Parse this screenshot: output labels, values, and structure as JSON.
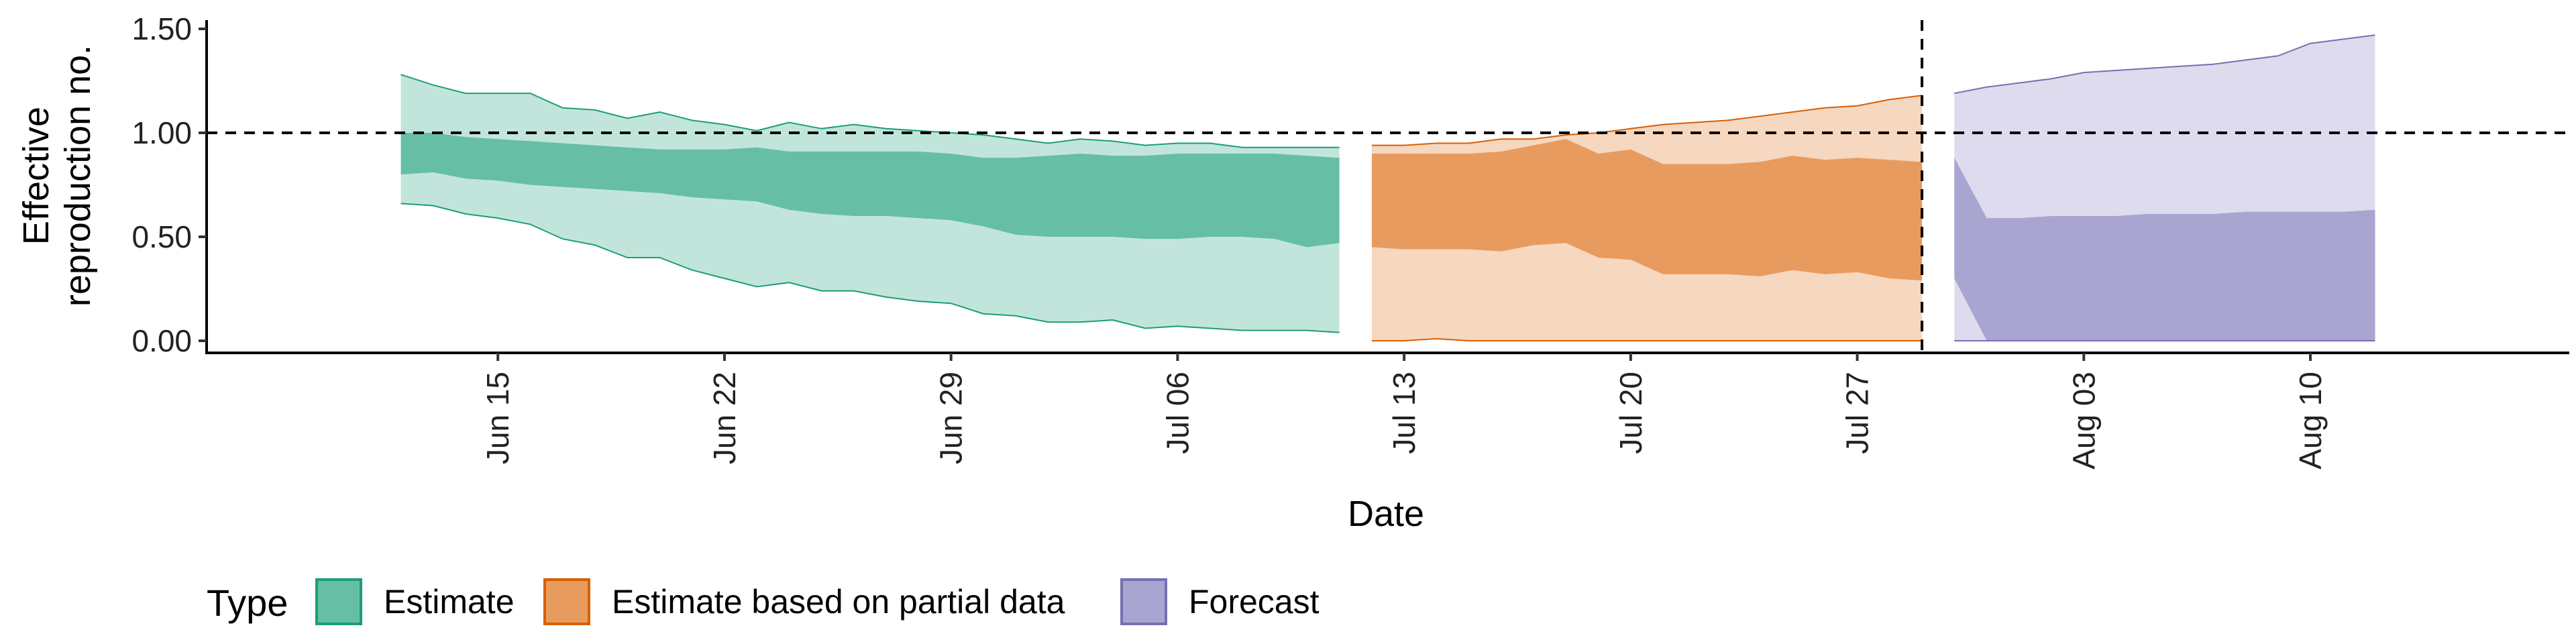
{
  "chart_data": {
    "type": "area",
    "xlabel": "Date",
    "ylabel": "Effective reproduction no.",
    "ylabel_lines": [
      "Effective",
      "reproduction no."
    ],
    "ylim": [
      0,
      1.55
    ],
    "y_ticks": [
      {
        "value": 0,
        "label": "0.00"
      },
      {
        "value": 0.5,
        "label": "0.50"
      },
      {
        "value": 1.0,
        "label": "1.00"
      },
      {
        "value": 1.5,
        "label": "1.50"
      }
    ],
    "xlim": [
      "2021-06-06",
      "2021-08-18"
    ],
    "x_ticks": [
      {
        "date": "2021-06-15",
        "label": "Jun 15"
      },
      {
        "date": "2021-06-22",
        "label": "Jun 22"
      },
      {
        "date": "2021-06-29",
        "label": "Jun 29"
      },
      {
        "date": "2021-07-06",
        "label": "Jul 06"
      },
      {
        "date": "2021-07-13",
        "label": "Jul 13"
      },
      {
        "date": "2021-07-20",
        "label": "Jul 20"
      },
      {
        "date": "2021-07-27",
        "label": "Jul 27"
      },
      {
        "date": "2021-08-03",
        "label": "Aug 03"
      },
      {
        "date": "2021-08-10",
        "label": "Aug 10"
      }
    ],
    "reference_line_y": 1.0,
    "reference_line_x": "2021-07-29",
    "legend": {
      "title": "Type",
      "position": "bottom"
    },
    "series": [
      {
        "name": "Estimate",
        "fill_color": "#66bfa4",
        "line_color": "#1b9e77",
        "x": [
          "2021-06-12",
          "2021-06-13",
          "2021-06-14",
          "2021-06-15",
          "2021-06-16",
          "2021-06-17",
          "2021-06-18",
          "2021-06-19",
          "2021-06-20",
          "2021-06-21",
          "2021-06-22",
          "2021-06-23",
          "2021-06-24",
          "2021-06-25",
          "2021-06-26",
          "2021-06-27",
          "2021-06-28",
          "2021-06-29",
          "2021-06-30",
          "2021-07-01",
          "2021-07-02",
          "2021-07-03",
          "2021-07-04",
          "2021-07-05",
          "2021-07-06",
          "2021-07-07",
          "2021-07-08",
          "2021-07-09",
          "2021-07-10",
          "2021-07-11"
        ],
        "lower_90": [
          0.66,
          0.65,
          0.61,
          0.59,
          0.56,
          0.49,
          0.46,
          0.4,
          0.4,
          0.34,
          0.3,
          0.26,
          0.28,
          0.24,
          0.24,
          0.21,
          0.19,
          0.18,
          0.13,
          0.12,
          0.09,
          0.09,
          0.1,
          0.06,
          0.07,
          0.06,
          0.05,
          0.05,
          0.05,
          0.04
        ],
        "lower_50": [
          0.8,
          0.81,
          0.78,
          0.77,
          0.75,
          0.74,
          0.73,
          0.72,
          0.71,
          0.69,
          0.68,
          0.67,
          0.63,
          0.61,
          0.6,
          0.6,
          0.59,
          0.58,
          0.55,
          0.51,
          0.5,
          0.5,
          0.5,
          0.49,
          0.49,
          0.5,
          0.5,
          0.49,
          0.45,
          0.47
        ],
        "upper_50": [
          1.0,
          1.0,
          0.98,
          0.97,
          0.96,
          0.95,
          0.94,
          0.93,
          0.92,
          0.92,
          0.92,
          0.93,
          0.91,
          0.91,
          0.91,
          0.91,
          0.91,
          0.9,
          0.88,
          0.88,
          0.89,
          0.9,
          0.89,
          0.89,
          0.9,
          0.9,
          0.9,
          0.9,
          0.89,
          0.88
        ],
        "upper_90": [
          1.28,
          1.23,
          1.19,
          1.19,
          1.19,
          1.12,
          1.11,
          1.07,
          1.1,
          1.06,
          1.04,
          1.01,
          1.05,
          1.02,
          1.04,
          1.02,
          1.01,
          1.0,
          0.99,
          0.97,
          0.95,
          0.97,
          0.96,
          0.94,
          0.95,
          0.95,
          0.93,
          0.93,
          0.93,
          0.93
        ]
      },
      {
        "name": "Estimate based on partial data",
        "fill_color": "#e89b5f",
        "line_color": "#d95f02",
        "x": [
          "2021-07-12",
          "2021-07-13",
          "2021-07-14",
          "2021-07-15",
          "2021-07-16",
          "2021-07-17",
          "2021-07-18",
          "2021-07-19",
          "2021-07-20",
          "2021-07-21",
          "2021-07-22",
          "2021-07-23",
          "2021-07-24",
          "2021-07-25",
          "2021-07-26",
          "2021-07-27",
          "2021-07-28",
          "2021-07-29"
        ],
        "lower_90": [
          0.0,
          0.0,
          0.01,
          0.0,
          0.0,
          0.0,
          0.0,
          0.0,
          0.0,
          0.0,
          0.0,
          0.0,
          0.0,
          0.0,
          0.0,
          0.0,
          0.0,
          0.0
        ],
        "lower_50": [
          0.45,
          0.44,
          0.44,
          0.44,
          0.43,
          0.46,
          0.47,
          0.4,
          0.39,
          0.32,
          0.32,
          0.32,
          0.31,
          0.34,
          0.32,
          0.33,
          0.3,
          0.29
        ],
        "upper_50": [
          0.9,
          0.9,
          0.9,
          0.9,
          0.91,
          0.94,
          0.97,
          0.9,
          0.92,
          0.85,
          0.85,
          0.85,
          0.86,
          0.89,
          0.87,
          0.88,
          0.87,
          0.86
        ],
        "upper_90": [
          0.94,
          0.94,
          0.95,
          0.95,
          0.97,
          0.97,
          0.99,
          1.0,
          1.02,
          1.04,
          1.05,
          1.06,
          1.08,
          1.1,
          1.12,
          1.13,
          1.16,
          1.18
        ]
      },
      {
        "name": "Forecast",
        "fill_color": "#a9a5d1",
        "line_color": "#7570b3",
        "x": [
          "2021-07-30",
          "2021-07-31",
          "2021-08-01",
          "2021-08-02",
          "2021-08-03",
          "2021-08-04",
          "2021-08-05",
          "2021-08-06",
          "2021-08-07",
          "2021-08-08",
          "2021-08-09",
          "2021-08-10",
          "2021-08-11",
          "2021-08-12"
        ],
        "lower_90": [
          0.0,
          0.0,
          0.0,
          0.0,
          0.0,
          0.0,
          0.0,
          0.0,
          0.0,
          0.0,
          0.0,
          0.0,
          0.0,
          0.0
        ],
        "lower_50": [
          0.3,
          0.0,
          0.0,
          0.0,
          0.0,
          0.0,
          0.0,
          0.0,
          0.0,
          0.0,
          0.0,
          0.0,
          0.0,
          0.0
        ],
        "upper_50": [
          0.88,
          0.59,
          0.59,
          0.6,
          0.6,
          0.6,
          0.61,
          0.61,
          0.61,
          0.62,
          0.62,
          0.62,
          0.62,
          0.63
        ],
        "upper_90": [
          1.19,
          1.22,
          1.24,
          1.26,
          1.29,
          1.3,
          1.31,
          1.32,
          1.33,
          1.35,
          1.37,
          1.43,
          1.45,
          1.47
        ]
      }
    ]
  }
}
